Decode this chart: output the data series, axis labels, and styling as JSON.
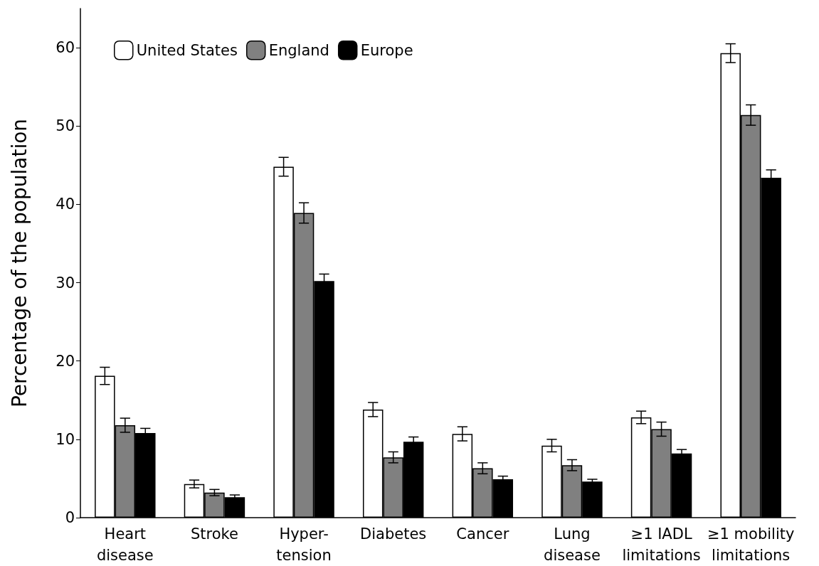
{
  "chart_data": {
    "type": "bar",
    "ylabel": "Percentage of the population",
    "categories": [
      "Heart\ndisease",
      "Stroke",
      "Hyper-\ntension",
      "Diabetes",
      "Cancer",
      "Lung\ndisease",
      "≥1 IADL\nlimitations",
      "≥1 mobility\nlimitations"
    ],
    "series": [
      {
        "name": "United States",
        "color": "#ffffff",
        "values": [
          18.1,
          4.3,
          44.8,
          13.8,
          10.7,
          9.2,
          12.8,
          59.3
        ],
        "errors": [
          1.1,
          0.5,
          1.2,
          0.9,
          0.9,
          0.8,
          0.8,
          1.2
        ]
      },
      {
        "name": "England",
        "color": "#808080",
        "values": [
          11.8,
          3.2,
          38.9,
          7.7,
          6.3,
          6.7,
          11.3,
          51.4
        ],
        "errors": [
          0.9,
          0.4,
          1.3,
          0.7,
          0.7,
          0.7,
          0.9,
          1.3
        ]
      },
      {
        "name": "Europe",
        "color": "#000000",
        "values": [
          10.8,
          2.6,
          30.2,
          9.7,
          4.9,
          4.6,
          8.2,
          43.4
        ],
        "errors": [
          0.6,
          0.3,
          0.9,
          0.6,
          0.4,
          0.3,
          0.5,
          1.0
        ]
      }
    ],
    "ylim": [
      0,
      65
    ],
    "yticks": [
      0,
      10,
      20,
      30,
      40,
      50,
      60
    ],
    "grid": false,
    "legend": "top left"
  }
}
